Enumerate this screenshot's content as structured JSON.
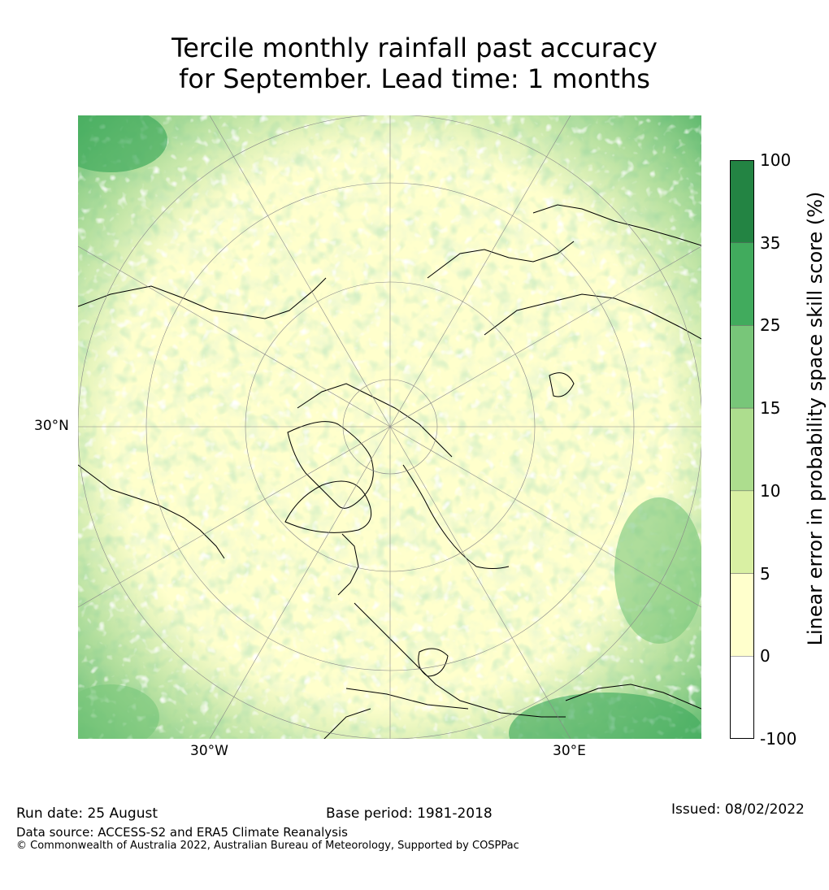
{
  "title": {
    "line1": "Tercile monthly rainfall past accuracy",
    "line2": "for September. Lead time: 1 months"
  },
  "map": {
    "projection": "north-polar-stereographic",
    "lat_label": "30°N",
    "lon_labels": [
      "30°W",
      "30°E"
    ],
    "ocean_tint": "#ffffcc"
  },
  "colorbar": {
    "label": "Linear error in probability space skill score (%)",
    "ticks": [
      "100",
      "35",
      "25",
      "15",
      "10",
      "5",
      "0",
      "-100"
    ],
    "colors": [
      "#238443",
      "#41ab5d",
      "#78c679",
      "#addd8e",
      "#d9f0a3",
      "#ffffcc",
      "#ffffff"
    ]
  },
  "footer": {
    "run_date": "Run date: 25 August",
    "base_period": "Base period: 1981-2018",
    "issued": "Issued: 08/02/2022",
    "data_source": "Data source: ACCESS-S2 and ERA5 Climate Reanalysis",
    "copyright": "© Commonwealth of Australia 2022, Australian Bureau of Meteorology, Supported by COSPPac"
  }
}
